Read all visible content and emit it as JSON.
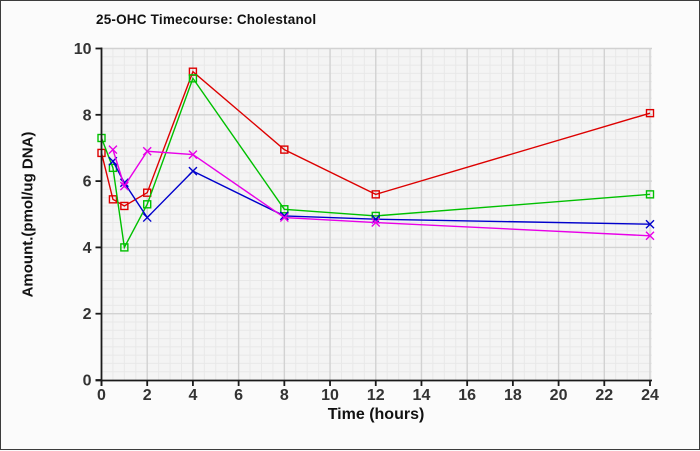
{
  "frame": {
    "background": "#fbfbfb",
    "border_color": "#3c3c3c",
    "plot_background": "#f4f4f4",
    "grid_minor_color": "#e8e8e8",
    "grid_major_color": "#d2d2d2",
    "axis_color": "#1a1a1a",
    "tick_label_color": "#333333"
  },
  "chart_data": {
    "type": "line",
    "title": "25-OHC Timecourse: Cholestanol",
    "xlabel": "Time (hours)",
    "ylabel": "Amount.(pmol/ug DNA)",
    "xlim": [
      0,
      24
    ],
    "ylim": [
      0,
      10
    ],
    "x_ticks": [
      0,
      2,
      4,
      6,
      8,
      10,
      12,
      14,
      16,
      18,
      20,
      22,
      24
    ],
    "y_ticks": [
      0,
      2,
      4,
      6,
      8,
      10
    ],
    "grid": {
      "minor_x_step": 0.5,
      "minor_y_step": 0.25,
      "major": true
    },
    "legend": "none",
    "x": [
      0,
      0.5,
      1,
      2,
      4,
      8,
      12,
      24
    ],
    "series": [
      {
        "name": "red-squares",
        "color": "#dd0000",
        "marker": "square",
        "values": [
          6.85,
          5.45,
          5.25,
          5.65,
          9.3,
          6.95,
          5.6,
          8.05
        ]
      },
      {
        "name": "green-squares",
        "color": "#00c000",
        "marker": "square",
        "values": [
          7.3,
          6.4,
          4.0,
          5.3,
          9.1,
          5.15,
          4.95,
          5.6
        ]
      },
      {
        "name": "blue-x",
        "color": "#0000cc",
        "marker": "x",
        "values": [
          null,
          6.6,
          5.95,
          4.9,
          6.3,
          4.95,
          4.85,
          4.7
        ]
      },
      {
        "name": "magenta-x",
        "color": "#e800e8",
        "marker": "x",
        "values": [
          null,
          6.95,
          5.85,
          6.9,
          6.8,
          4.9,
          4.75,
          4.35
        ]
      }
    ]
  }
}
